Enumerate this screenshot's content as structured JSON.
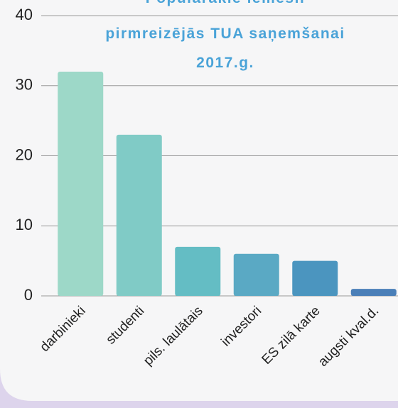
{
  "chart_data": {
    "type": "bar",
    "title": [
      "Populārākie iemesli",
      "pirmreizējās TUA saņemšanai",
      "2017.g."
    ],
    "categories": [
      "darbinieki",
      "studenti",
      "pils. laulātais",
      "investori",
      "ES zilā karte",
      "augsti kval.d."
    ],
    "values": [
      32,
      23,
      7,
      6,
      5,
      1
    ],
    "colors": [
      "#9dd8c8",
      "#80cbc6",
      "#64bdc4",
      "#5aa9c4",
      "#4b95bf",
      "#4a7fb8"
    ],
    "ylim": [
      0,
      40
    ],
    "yticks": [
      0,
      10,
      20,
      30,
      40
    ],
    "grid": true
  }
}
